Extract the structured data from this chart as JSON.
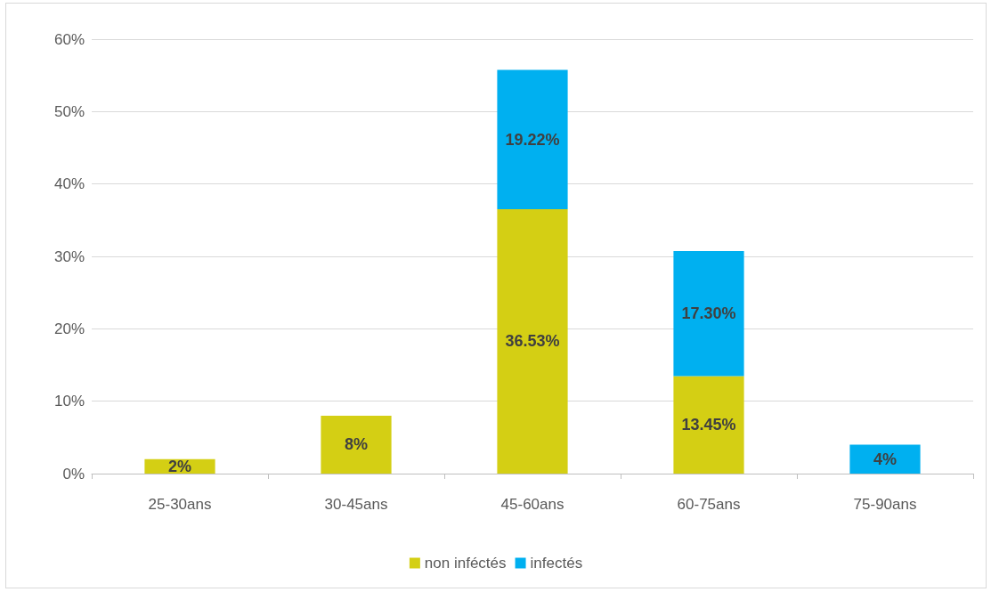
{
  "chart_data": {
    "type": "bar",
    "stacked": true,
    "categories": [
      "25-30ans",
      "30-45ans",
      "45-60ans",
      "60-75ans",
      "75-90ans"
    ],
    "series": [
      {
        "name": "non inféctés",
        "color": "#d4cf14",
        "values": [
          2,
          8,
          36.53,
          13.45,
          null
        ],
        "value_labels": [
          "2%",
          "8%",
          "36.53%",
          "13.45%",
          null
        ]
      },
      {
        "name": "infectés",
        "color": "#00b0f0",
        "values": [
          null,
          null,
          19.22,
          17.3,
          4
        ],
        "value_labels": [
          null,
          null,
          "19.22%",
          "17.30%",
          "4%"
        ]
      }
    ],
    "ylim": [
      0,
      60
    ],
    "yticks": [
      {
        "value": 0,
        "label": "0%"
      },
      {
        "value": 10,
        "label": "10%"
      },
      {
        "value": 20,
        "label": "20%"
      },
      {
        "value": 30,
        "label": "30%"
      },
      {
        "value": 40,
        "label": "40%"
      },
      {
        "value": 50,
        "label": "50%"
      },
      {
        "value": 60,
        "label": "60%"
      }
    ],
    "grid": "y",
    "legend": "bottom"
  }
}
